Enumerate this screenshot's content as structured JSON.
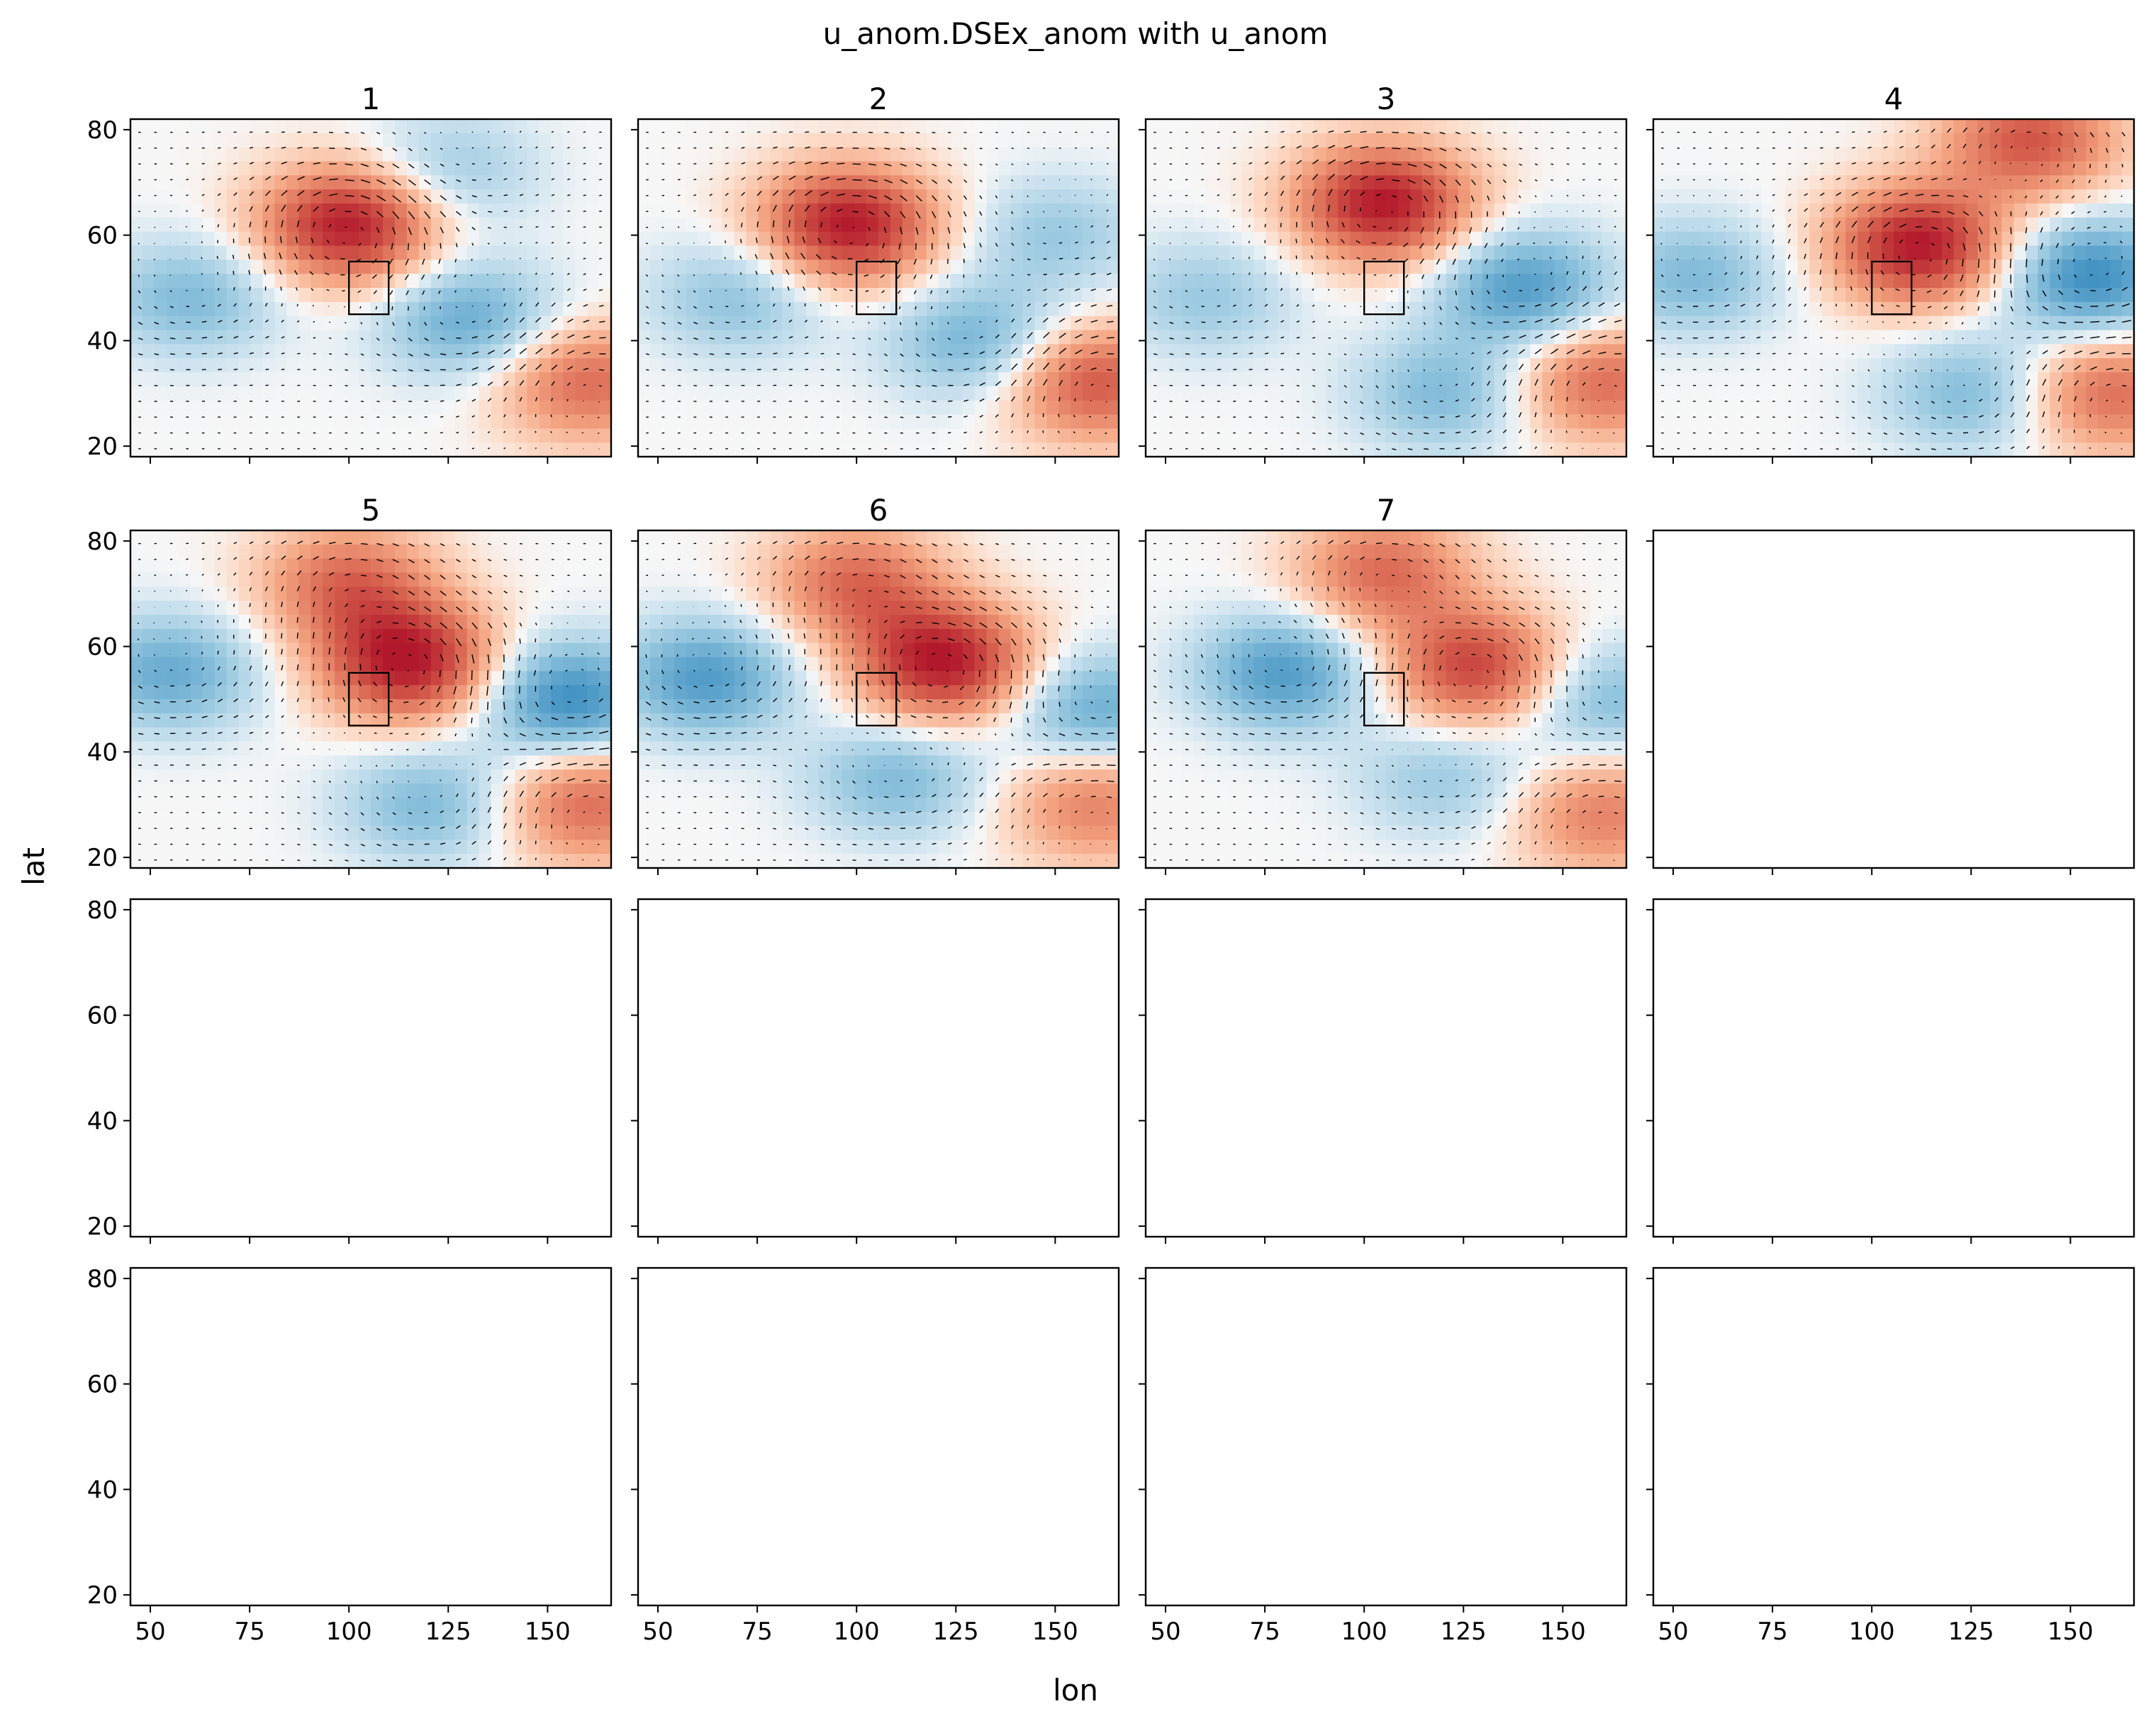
{
  "figure": {
    "title": "u_anom.DSEx_anom with u_anom",
    "xlabel": "lon",
    "ylabel": "lat"
  },
  "chart_data": {
    "type": "heatmap",
    "title": "u_anom.DSEx_anom with u_anom",
    "xlabel": "lon",
    "ylabel": "lat",
    "xlim": [
      45,
      166
    ],
    "ylim": [
      18,
      82
    ],
    "xticks": [
      50,
      75,
      100,
      125,
      150
    ],
    "yticks": [
      20,
      40,
      60,
      80
    ],
    "grid": false,
    "colormap": "RdBu_r",
    "vectors": "quiver overlay of wind anomaly",
    "colors": {
      "warm": "#b2182b",
      "cool": "#2166ac",
      "box": "#000000"
    },
    "box": {
      "lon": [
        100,
        110
      ],
      "lat": [
        45,
        55
      ]
    },
    "layout": {
      "rows": 4,
      "cols": 4
    },
    "panels": [
      {
        "title": "1",
        "highs": [
          [
            100,
            62,
            1.0
          ],
          [
            160,
            32,
            0.6
          ]
        ],
        "lows": [
          [
            60,
            48,
            -0.4
          ],
          [
            130,
            44,
            -0.5
          ],
          [
            125,
            72,
            -0.3
          ]
        ]
      },
      {
        "title": "2",
        "highs": [
          [
            98,
            62,
            1.0
          ],
          [
            160,
            32,
            0.7
          ]
        ],
        "lows": [
          [
            70,
            48,
            -0.35
          ],
          [
            130,
            40,
            -0.45
          ],
          [
            150,
            60,
            -0.3
          ]
        ]
      },
      {
        "title": "3",
        "highs": [
          [
            105,
            66,
            1.0
          ],
          [
            160,
            32,
            0.6
          ]
        ],
        "lows": [
          [
            60,
            48,
            -0.3
          ],
          [
            140,
            50,
            -0.6
          ],
          [
            120,
            30,
            -0.4
          ]
        ]
      },
      {
        "title": "4",
        "highs": [
          [
            112,
            58,
            1.0
          ],
          [
            140,
            78,
            0.7
          ],
          [
            160,
            30,
            0.6
          ]
        ],
        "lows": [
          [
            55,
            52,
            -0.4
          ],
          [
            155,
            52,
            -0.7
          ],
          [
            125,
            30,
            -0.4
          ]
        ]
      },
      {
        "title": "5",
        "highs": [
          [
            115,
            57,
            1.0
          ],
          [
            100,
            72,
            0.6
          ],
          [
            160,
            30,
            0.6
          ]
        ],
        "lows": [
          [
            55,
            55,
            -0.5
          ],
          [
            155,
            50,
            -0.7
          ],
          [
            120,
            30,
            -0.4
          ]
        ]
      },
      {
        "title": "6",
        "highs": [
          [
            122,
            57,
            1.0
          ],
          [
            100,
            72,
            0.6
          ],
          [
            160,
            30,
            0.5
          ]
        ],
        "lows": [
          [
            62,
            54,
            -0.6
          ],
          [
            160,
            48,
            -0.5
          ],
          [
            110,
            35,
            -0.4
          ]
        ]
      },
      {
        "title": "7",
        "highs": [
          [
            128,
            56,
            0.8
          ],
          [
            105,
            74,
            0.6
          ],
          [
            160,
            28,
            0.5
          ]
        ],
        "lows": [
          [
            80,
            55,
            -0.6
          ],
          [
            160,
            50,
            -0.4
          ],
          [
            120,
            35,
            -0.3
          ]
        ]
      }
    ]
  }
}
